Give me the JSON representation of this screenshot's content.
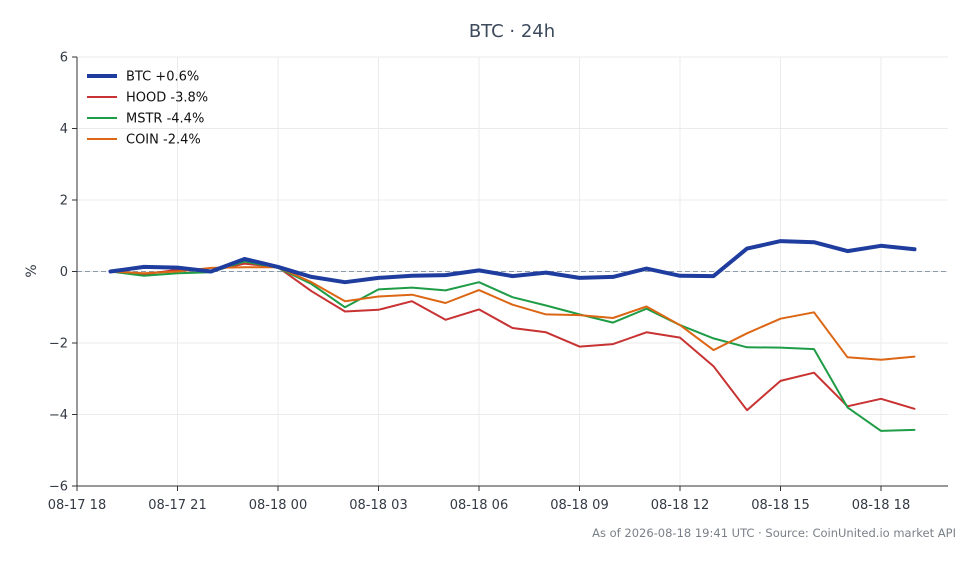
{
  "chart_data": {
    "type": "line",
    "title": "BTC · 24h",
    "xlabel": "",
    "ylabel": "%",
    "ylim": [
      -6,
      6
    ],
    "yticks": [
      -6,
      -4,
      -2,
      0,
      2,
      4,
      6
    ],
    "ytick_labels": [
      "−6",
      "−4",
      "−2",
      "0",
      "2",
      "4",
      "6"
    ],
    "x_start": "2026-08-17 19:00",
    "x_end": "2026-08-18 19:00",
    "x_step_hours": 1,
    "xlim": [
      "2026-08-17 18:00",
      "2026-08-18 20:00"
    ],
    "xticks": [
      "2026-08-17 18:00",
      "2026-08-17 21:00",
      "2026-08-18 00:00",
      "2026-08-18 03:00",
      "2026-08-18 06:00",
      "2026-08-18 09:00",
      "2026-08-18 12:00",
      "2026-08-18 15:00",
      "2026-08-18 18:00"
    ],
    "xtick_labels": [
      "08-17 18",
      "08-17 21",
      "08-18 00",
      "08-18 03",
      "08-18 06",
      "08-18 09",
      "08-18 12",
      "08-18 15",
      "08-18 18"
    ],
    "grid": true,
    "zero_line": true,
    "legend": "top-left",
    "series": [
      {
        "name": "BTC +0.6%",
        "color": "#1f3d9e",
        "width": 4,
        "values": [
          0.0,
          0.13,
          0.11,
          0.0,
          0.35,
          0.13,
          -0.15,
          -0.3,
          -0.18,
          -0.12,
          -0.1,
          0.03,
          -0.13,
          -0.03,
          -0.18,
          -0.15,
          0.08,
          -0.12,
          -0.13,
          0.64,
          0.85,
          0.82,
          0.57,
          0.72,
          0.62
        ]
      },
      {
        "name": "HOOD -3.8%",
        "color": "#c83232",
        "width": 2,
        "values": [
          0.0,
          -0.08,
          0.05,
          0.02,
          0.22,
          0.12,
          -0.55,
          -1.12,
          -1.07,
          -0.83,
          -1.35,
          -1.06,
          -1.58,
          -1.7,
          -2.1,
          -2.03,
          -1.7,
          -1.85,
          -2.65,
          -3.88,
          -3.06,
          -2.83,
          -3.77,
          -3.56,
          -3.84
        ]
      },
      {
        "name": "MSTR -4.4%",
        "color": "#1f9c46",
        "width": 2,
        "values": [
          0.0,
          -0.12,
          -0.05,
          -0.02,
          0.28,
          0.1,
          -0.35,
          -1.0,
          -0.5,
          -0.45,
          -0.53,
          -0.3,
          -0.72,
          -0.95,
          -1.2,
          -1.43,
          -1.04,
          -1.5,
          -1.87,
          -2.12,
          -2.13,
          -2.17,
          -3.8,
          -4.46,
          -4.43
        ]
      },
      {
        "name": "COIN -2.4%",
        "color": "#dc6614",
        "width": 2,
        "values": [
          0.0,
          -0.05,
          0.0,
          0.1,
          0.12,
          0.12,
          -0.3,
          -0.83,
          -0.7,
          -0.65,
          -0.88,
          -0.52,
          -0.93,
          -1.2,
          -1.22,
          -1.3,
          -0.98,
          -1.5,
          -2.2,
          -1.73,
          -1.32,
          -1.14,
          -2.4,
          -2.47,
          -2.38
        ]
      }
    ]
  },
  "footer": "As of 2026-08-18 19:41 UTC · Source: CoinUnited.io market API"
}
